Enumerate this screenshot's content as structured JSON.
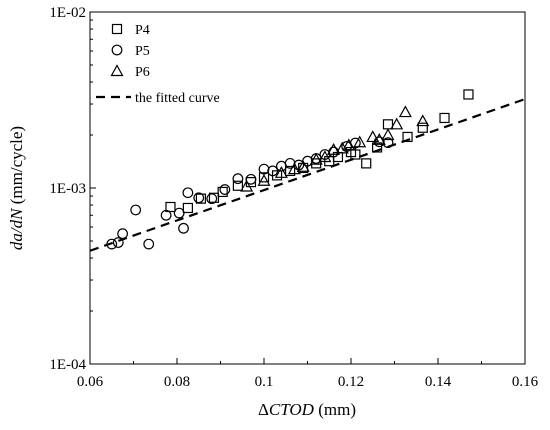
{
  "chart_data": {
    "type": "scatter",
    "xlabel": {
      "delta": "Δ",
      "var": "CTOD",
      "unit": " (mm)"
    },
    "ylabel": {
      "var": "da/dN",
      "unit": " (mm/cycle)"
    },
    "xlim": [
      0.06,
      0.16
    ],
    "ylim": [
      0.0001,
      0.01
    ],
    "yscale": "log",
    "x_ticks": [
      {
        "value": 0.06,
        "label": "0.06"
      },
      {
        "value": 0.08,
        "label": "0.08"
      },
      {
        "value": 0.1,
        "label": "0.1"
      },
      {
        "value": 0.12,
        "label": "0.12"
      },
      {
        "value": 0.14,
        "label": "0.14"
      },
      {
        "value": 0.16,
        "label": "0.16"
      }
    ],
    "y_ticks": [
      {
        "value": 0.0001,
        "label": "1E-04"
      },
      {
        "value": 0.001,
        "label": "1E-03"
      },
      {
        "value": 0.01,
        "label": "1E-02"
      }
    ],
    "legend_position": "top-left",
    "series": [
      {
        "name": "P4",
        "marker": "square",
        "points": [
          [
            0.0785,
            0.00078
          ],
          [
            0.0825,
            0.00077
          ],
          [
            0.0855,
            0.00087
          ],
          [
            0.0885,
            0.00088
          ],
          [
            0.0905,
            0.00095
          ],
          [
            0.094,
            0.00103
          ],
          [
            0.097,
            0.00108
          ],
          [
            0.1,
            0.00115
          ],
          [
            0.103,
            0.00118
          ],
          [
            0.106,
            0.00125
          ],
          [
            0.109,
            0.0013
          ],
          [
            0.112,
            0.00138
          ],
          [
            0.115,
            0.00142
          ],
          [
            0.117,
            0.0015
          ],
          [
            0.12,
            0.0016
          ],
          [
            0.121,
            0.00155
          ],
          [
            0.1235,
            0.00138
          ],
          [
            0.126,
            0.0017
          ],
          [
            0.1285,
            0.0023
          ],
          [
            0.133,
            0.00195
          ],
          [
            0.1365,
            0.0022
          ],
          [
            0.1415,
            0.0025
          ],
          [
            0.147,
            0.0034
          ]
        ]
      },
      {
        "name": "P5",
        "marker": "circle",
        "points": [
          [
            0.065,
            0.00048
          ],
          [
            0.0665,
            0.00049
          ],
          [
            0.0675,
            0.00055
          ],
          [
            0.0705,
            0.00075
          ],
          [
            0.0735,
            0.00048
          ],
          [
            0.0775,
            0.0007
          ],
          [
            0.0805,
            0.00072
          ],
          [
            0.0815,
            0.00059
          ],
          [
            0.0825,
            0.00094
          ],
          [
            0.085,
            0.00088
          ],
          [
            0.088,
            0.00087
          ],
          [
            0.091,
            0.00098
          ],
          [
            0.094,
            0.00113
          ],
          [
            0.097,
            0.00112
          ],
          [
            0.1,
            0.00128
          ],
          [
            0.102,
            0.00125
          ],
          [
            0.104,
            0.00133
          ],
          [
            0.106,
            0.00138
          ],
          [
            0.108,
            0.00135
          ],
          [
            0.11,
            0.00142
          ],
          [
            0.112,
            0.00147
          ],
          [
            0.114,
            0.00155
          ],
          [
            0.116,
            0.0016
          ],
          [
            0.119,
            0.00172
          ],
          [
            0.121,
            0.0018
          ],
          [
            0.1265,
            0.00183
          ],
          [
            0.1285,
            0.00181
          ]
        ]
      },
      {
        "name": "P6",
        "marker": "triangle",
        "points": [
          [
            0.096,
            0.00102
          ],
          [
            0.1,
            0.0011
          ],
          [
            0.104,
            0.00122
          ],
          [
            0.107,
            0.00128
          ],
          [
            0.109,
            0.00132
          ],
          [
            0.112,
            0.00145
          ],
          [
            0.114,
            0.0015
          ],
          [
            0.116,
            0.00165
          ],
          [
            0.118,
            0.00168
          ],
          [
            0.1195,
            0.00175
          ],
          [
            0.122,
            0.00182
          ],
          [
            0.125,
            0.00195
          ],
          [
            0.1265,
            0.00188
          ],
          [
            0.1285,
            0.002
          ],
          [
            0.1305,
            0.0023
          ],
          [
            0.1325,
            0.0027
          ],
          [
            0.1365,
            0.0024
          ]
        ]
      }
    ],
    "fit_line": {
      "name": "the fitted curve",
      "points": [
        [
          0.06,
          0.00044
        ],
        [
          0.16,
          0.0032
        ]
      ]
    }
  }
}
